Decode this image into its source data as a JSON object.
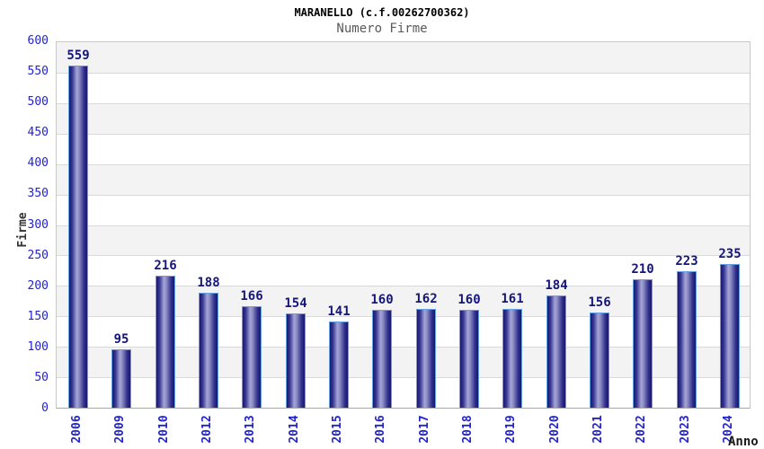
{
  "header": {
    "title": "MARANELLO (c.f.00262700362)",
    "subtitle": "Numero Firme"
  },
  "axes": {
    "x_label": "Anno",
    "y_label": "Firme"
  },
  "chart_data": {
    "type": "bar",
    "title": "MARANELLO (c.f.00262700362)",
    "subtitle": "Numero Firme",
    "xlabel": "Anno",
    "ylabel": "Firme",
    "categories": [
      "2006",
      "2009",
      "2010",
      "2012",
      "2013",
      "2014",
      "2015",
      "2016",
      "2017",
      "2018",
      "2019",
      "2020",
      "2021",
      "2022",
      "2023",
      "2024"
    ],
    "values": [
      559,
      95,
      216,
      188,
      166,
      154,
      141,
      160,
      162,
      160,
      161,
      184,
      156,
      210,
      223,
      235
    ],
    "ylim": [
      0,
      600
    ],
    "y_tick_step": 50,
    "grid": "horizontal-bands-alternating",
    "legend": "none",
    "colors": {
      "tick_label": "#2323cb",
      "value_label": "#15157a",
      "bar_edge": "#17176e",
      "bar_mid_light": "#a6a6d6",
      "bar_border": "#64a0e6",
      "band_gray": "#f3f3f3",
      "band_white": "#ffffff",
      "grid_line": "#d9d9d9",
      "plot_border": "#c9c9c9",
      "subtitle_text": "#5a5a5a",
      "title_text": "#000000"
    }
  }
}
